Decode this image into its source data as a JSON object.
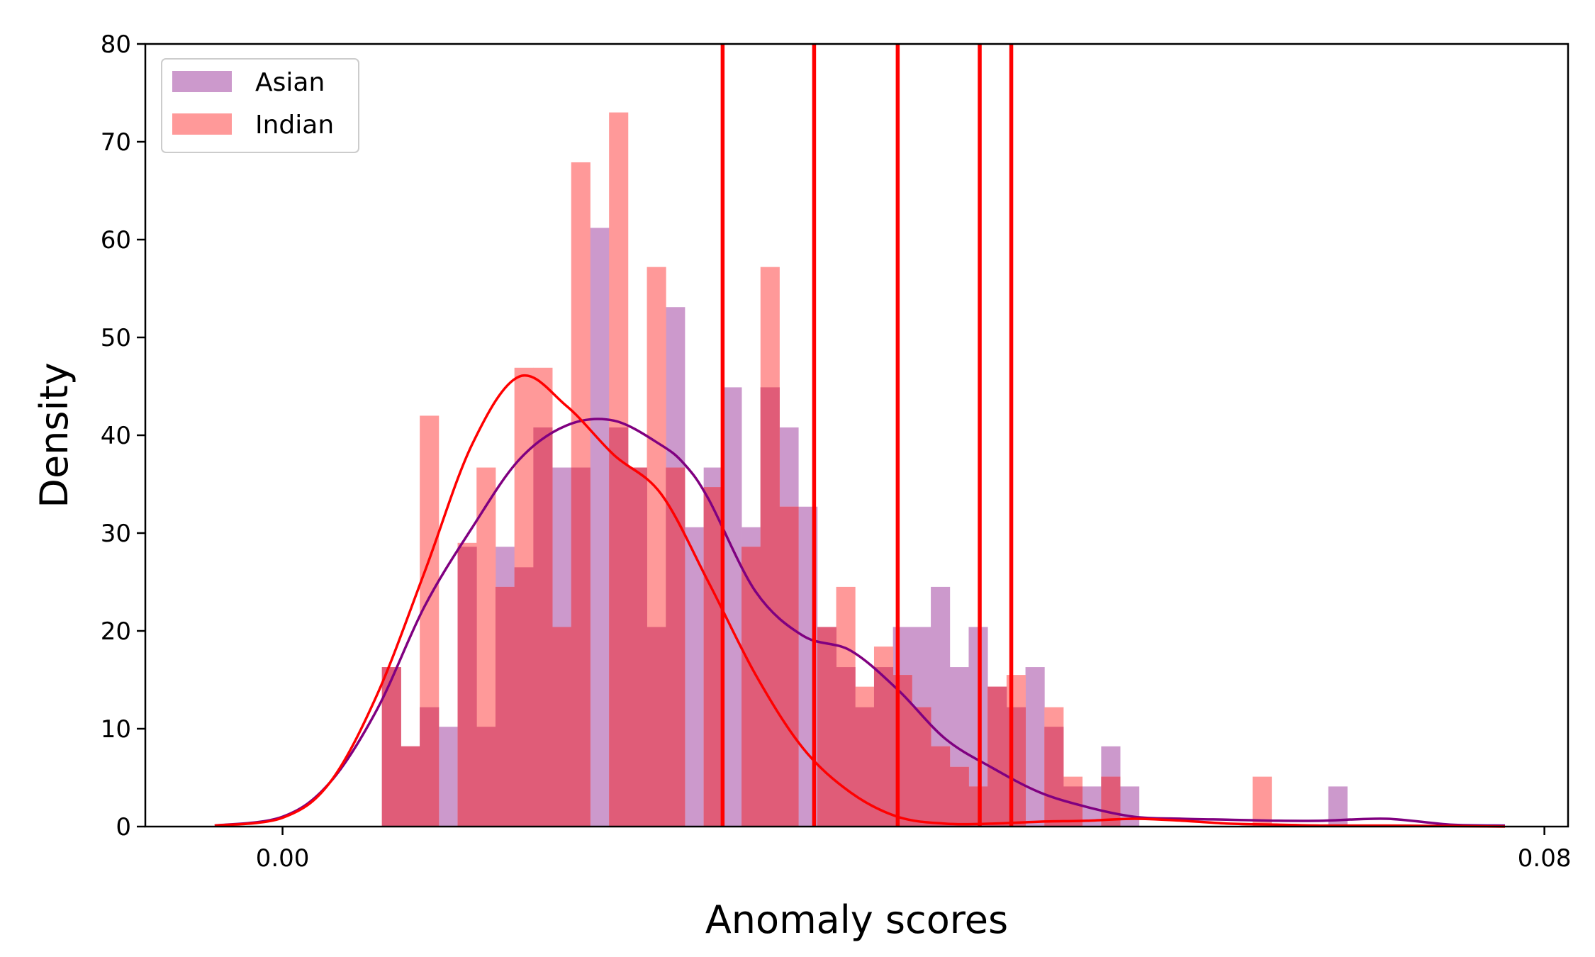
{
  "chart_data": {
    "type": "bar",
    "xlabel": "Anomaly scores",
    "ylabel": "Density",
    "xlim": [
      -0.0087,
      0.0815
    ],
    "ylim": [
      0,
      80
    ],
    "xticks": [
      0.0,
      0.08
    ],
    "xtick_labels": [
      "0.00",
      "0.08"
    ],
    "yticks": [
      0,
      10,
      20,
      30,
      40,
      50,
      60,
      70,
      80
    ],
    "ytick_labels": [
      "0",
      "10",
      "20",
      "30",
      "40",
      "50",
      "60",
      "70",
      "80"
    ],
    "grid": false,
    "legend_position": "top-left",
    "bin_edges": [
      0.0063,
      0.0075,
      0.0087,
      0.0099,
      0.0111,
      0.0123,
      0.0135,
      0.0147,
      0.0159,
      0.0171,
      0.0183,
      0.0195,
      0.0207,
      0.0219,
      0.0231,
      0.0243,
      0.0255,
      0.0267,
      0.0279,
      0.0291,
      0.0303,
      0.0315,
      0.0327,
      0.0339,
      0.0351,
      0.0363,
      0.0375,
      0.0387,
      0.0399,
      0.0411,
      0.0423,
      0.0435,
      0.0447,
      0.0459,
      0.0471,
      0.0483,
      0.0495,
      0.0507,
      0.0519,
      0.0531,
      0.0543,
      0.0555,
      0.0567,
      0.0579,
      0.0591,
      0.0603,
      0.0615,
      0.0627,
      0.0639,
      0.0651,
      0.0663,
      0.0675
    ],
    "series": [
      {
        "name": "Asian",
        "color": "#cc99cc",
        "values": [
          16.3,
          8.2,
          12.2,
          10.2,
          28.6,
          10.2,
          28.6,
          26.5,
          40.8,
          36.7,
          36.7,
          61.2,
          40.8,
          36.7,
          20.4,
          53.1,
          30.6,
          36.7,
          44.9,
          30.6,
          44.9,
          40.8,
          32.7,
          20.4,
          16.3,
          12.2,
          16.3,
          20.4,
          20.4,
          24.5,
          16.3,
          20.4,
          14.3,
          12.2,
          16.3,
          10.2,
          4.1,
          4.1,
          8.2,
          4.1,
          0,
          0,
          0,
          0,
          0,
          0,
          0,
          0,
          0,
          0,
          4.1
        ]
      },
      {
        "name": "Indian",
        "color": "#ff9999",
        "values": [
          16.3,
          8.2,
          42.0,
          0,
          29.0,
          36.7,
          24.5,
          46.9,
          46.9,
          20.4,
          67.9,
          0,
          73.0,
          36.7,
          57.2,
          36.7,
          0,
          34.7,
          0,
          28.6,
          57.2,
          32.7,
          0,
          20.4,
          24.5,
          14.3,
          18.4,
          15.5,
          12.2,
          8.2,
          6.1,
          4.1,
          14.3,
          15.5,
          0,
          12.2,
          5.1,
          0,
          5.1,
          0,
          0,
          0,
          0,
          0,
          0,
          0,
          5.1,
          0,
          0,
          0,
          0
        ]
      }
    ],
    "overlap_color": "#e05c78",
    "kde": [
      {
        "name": "Asian",
        "color": "#800080",
        "x": [
          -0.0043,
          0.0,
          0.003,
          0.006,
          0.009,
          0.012,
          0.015,
          0.018,
          0.021,
          0.024,
          0.0255,
          0.027,
          0.03,
          0.033,
          0.036,
          0.039,
          0.042,
          0.045,
          0.048,
          0.051,
          0.054,
          0.057,
          0.06,
          0.063,
          0.066,
          0.07,
          0.074,
          0.0775
        ],
        "y": [
          0.1,
          1.0,
          4.5,
          12.0,
          22.5,
          30.5,
          37.5,
          41.0,
          41.5,
          39.0,
          37.0,
          33.5,
          24.0,
          19.5,
          18.0,
          14.0,
          9.0,
          6.0,
          3.5,
          2.0,
          1.0,
          0.8,
          0.7,
          0.6,
          0.6,
          0.8,
          0.2,
          0.1
        ]
      },
      {
        "name": "Indian",
        "color": "#ff0000",
        "x": [
          -0.0043,
          0.0,
          0.003,
          0.006,
          0.009,
          0.012,
          0.015,
          0.018,
          0.021,
          0.024,
          0.027,
          0.03,
          0.033,
          0.036,
          0.039,
          0.042,
          0.045,
          0.048,
          0.051,
          0.054,
          0.057,
          0.06,
          0.063,
          0.066,
          0.07,
          0.074,
          0.0775
        ],
        "y": [
          0.1,
          0.9,
          4.5,
          13.5,
          26.0,
          39.0,
          46.0,
          43.0,
          38.0,
          34.0,
          25.0,
          15.5,
          8.0,
          3.5,
          1.0,
          0.3,
          0.3,
          0.5,
          0.6,
          0.8,
          0.6,
          0.3,
          0.2,
          0.1,
          0.1,
          0.05,
          0.0
        ]
      }
    ],
    "vertical_lines": {
      "color": "#ff0000",
      "x": [
        0.0279,
        0.0337,
        0.039,
        0.0442,
        0.0462
      ]
    }
  }
}
